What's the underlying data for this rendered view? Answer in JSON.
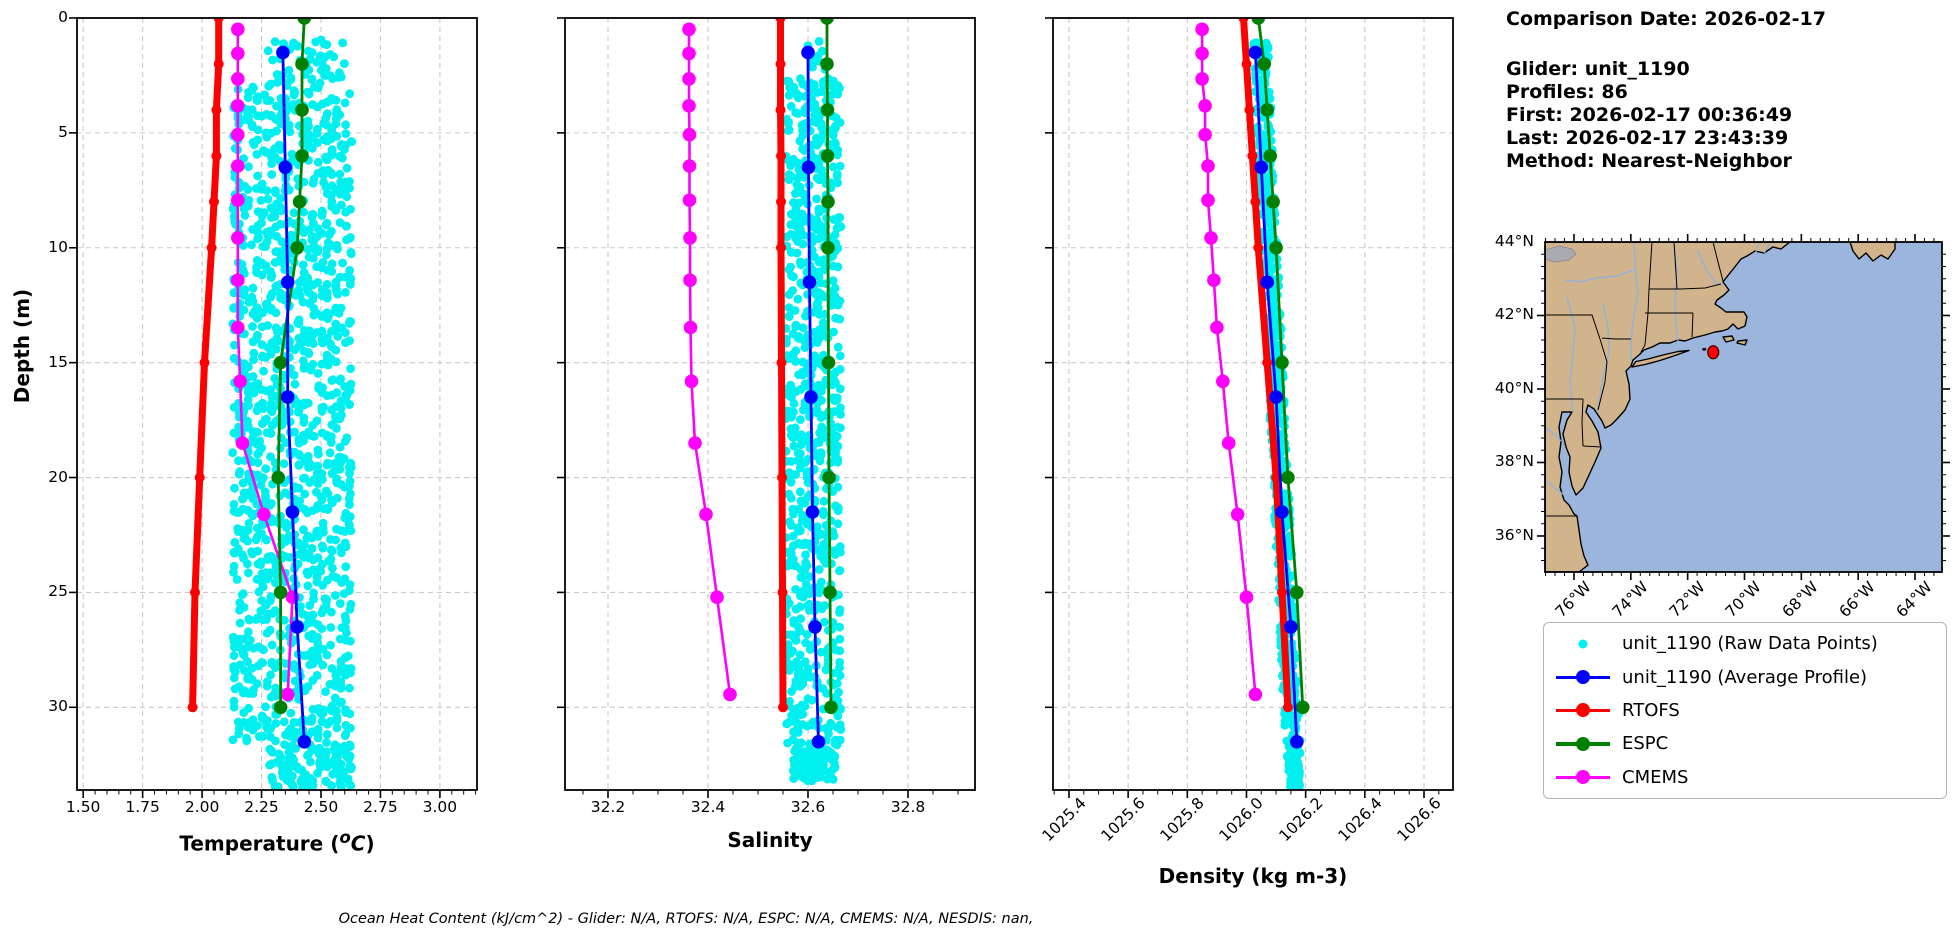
{
  "info": {
    "title": "Comparison Date: 2026-02-17",
    "glider": "Glider: unit_1190",
    "profiles": "Profiles: 86",
    "first": "First: 2026-02-17 00:36:49",
    "last": "Last: 2026-02-17 23:43:39",
    "method": "Method: Nearest-Neighbor"
  },
  "note": {
    "text": "Ocean Heat Content (kJ/cm^2) - Glider: N/A,  RTOFS: N/A,  ESPC: N/A,  CMEMS: N/A,  NESDIS: nan,"
  },
  "legend": {
    "items": [
      {
        "label": "unit_1190 (Raw Data Points)",
        "color": "#00F0F0",
        "style": "dot"
      },
      {
        "label": "unit_1190 (Average Profile)",
        "color": "#0000FF",
        "style": "line-dot"
      },
      {
        "label": "RTOFS",
        "color": "#FF0000",
        "style": "line-dot"
      },
      {
        "label": "ESPC",
        "color": "#008000",
        "style": "line-dot"
      },
      {
        "label": "CMEMS",
        "color": "#FF00FF",
        "style": "line-dot"
      }
    ]
  },
  "map": {
    "lat_ticks": [
      "44°N",
      "42°N",
      "40°N",
      "38°N",
      "36°N"
    ],
    "lat_values": [
      44,
      42,
      40,
      38,
      36
    ],
    "lon_ticks": [
      "76°W",
      "74°W",
      "72°W",
      "70°W",
      "68°W",
      "66°W",
      "64°W"
    ],
    "lon_values": [
      -76,
      -74,
      -72,
      -70,
      -68,
      -66,
      -64
    ],
    "extent": {
      "lon_min": -77.02,
      "lon_max": -63.05,
      "lat_min": 35.02,
      "lat_max": 44.0
    },
    "marker": {
      "lat": 41.0,
      "lon": -71.1,
      "color": "#FF0000"
    },
    "land_color": "#D2B48C",
    "ocean_color": "#9CB5DC",
    "lake_color": "#A9A9B0",
    "river_color": "#8AB2E2"
  },
  "chart_data": [
    {
      "type": "scatter",
      "id": "temperature",
      "xlabel_parts": {
        "pre": "Temperature (",
        "sup": "o",
        "c": "C",
        "close": ")"
      },
      "ylabel": "Depth (m)",
      "xlim": [
        1.474,
        3.156
      ],
      "xticks": [
        1.5,
        1.75,
        2.0,
        2.25,
        2.5,
        2.75,
        3.0
      ],
      "xtick_decimals": 2,
      "ylim": [
        0,
        33.6
      ],
      "yticks": [
        0,
        5,
        10,
        15,
        20,
        25,
        30
      ],
      "series": [
        {
          "name": "RTOFS",
          "color": "#FF0000",
          "lw": 7,
          "r": 5,
          "depths": [
            0,
            2,
            4,
            6,
            8,
            10,
            15,
            20,
            25,
            30
          ],
          "values": [
            2.07,
            2.07,
            2.06,
            2.06,
            2.05,
            2.04,
            2.01,
            1.99,
            1.97,
            1.96
          ]
        },
        {
          "name": "CMEMS",
          "color": "#FF00FF",
          "lw": 2.6,
          "r": 6.8,
          "depths": [
            0.49,
            1.54,
            2.65,
            3.82,
            5.08,
            6.44,
            7.93,
            9.57,
            11.41,
            13.47,
            15.81,
            18.5,
            21.6,
            25.21,
            29.44
          ],
          "values": [
            2.15,
            2.15,
            2.15,
            2.15,
            2.15,
            2.15,
            2.15,
            2.15,
            2.15,
            2.15,
            2.16,
            2.17,
            2.26,
            2.38,
            2.36
          ]
        },
        {
          "name": "ESPC",
          "color": "#008000",
          "lw": 2.8,
          "r": 6.8,
          "depths": [
            0,
            2,
            4,
            6,
            8,
            10,
            15,
            20,
            25,
            30
          ],
          "values": [
            2.43,
            2.42,
            2.42,
            2.42,
            2.41,
            2.4,
            2.33,
            2.32,
            2.33,
            2.33
          ]
        },
        {
          "name": "unit_1190 (Average Profile)",
          "color": "#0000FF",
          "lw": 2.8,
          "r": 6.8,
          "depths": [
            1.5,
            6.5,
            11.5,
            16.5,
            21.5,
            26.5,
            31.5
          ],
          "values": [
            2.34,
            2.35,
            2.36,
            2.36,
            2.38,
            2.4,
            2.43
          ]
        }
      ],
      "raw": {
        "color": "#00F0F0",
        "form": "stripes",
        "stripes": 26,
        "x0": 2.135,
        "dx": 0.0195,
        "jitter": 0.007,
        "per_stripe": 48,
        "extra": 80,
        "dmin": 3.0,
        "dmax": 31.6,
        "top": {
          "n": 55,
          "dmin": 0.9,
          "dmax": 3.0,
          "xmin": 2.27,
          "xmax": 2.6
        },
        "bottom": {
          "n": 120,
          "dmin": 31.6,
          "dmax": 33.5,
          "xmin": 2.28,
          "xmax": 2.63
        }
      }
    },
    {
      "type": "scatter",
      "id": "salinity",
      "xlabel": "Salinity",
      "xlim": [
        32.114,
        32.934
      ],
      "xticks": [
        32.2,
        32.4,
        32.6,
        32.8
      ],
      "xtick_decimals": 1,
      "ylim": [
        0,
        33.6
      ],
      "yticks": [
        0,
        5,
        10,
        15,
        20,
        25,
        30
      ],
      "series": [
        {
          "name": "RTOFS",
          "color": "#FF0000",
          "lw": 7,
          "r": 5,
          "depths": [
            0,
            2,
            4,
            6,
            8,
            10,
            15,
            20,
            25,
            30
          ],
          "values": [
            32.545,
            32.545,
            32.545,
            32.546,
            32.546,
            32.546,
            32.547,
            32.548,
            32.549,
            32.55
          ]
        },
        {
          "name": "CMEMS",
          "color": "#FF00FF",
          "lw": 2.6,
          "r": 6.8,
          "depths": [
            0.49,
            1.54,
            2.65,
            3.82,
            5.08,
            6.44,
            7.93,
            9.57,
            11.41,
            13.47,
            15.81,
            18.5,
            21.6,
            25.21,
            29.44
          ],
          "values": [
            32.362,
            32.362,
            32.362,
            32.362,
            32.363,
            32.363,
            32.363,
            32.364,
            32.364,
            32.365,
            32.367,
            32.374,
            32.396,
            32.418,
            32.444
          ]
        },
        {
          "name": "ESPC",
          "color": "#008000",
          "lw": 2.8,
          "r": 6.8,
          "depths": [
            0,
            2,
            4,
            6,
            8,
            10,
            15,
            20,
            25,
            30
          ],
          "values": [
            32.638,
            32.638,
            32.639,
            32.639,
            32.64,
            32.64,
            32.641,
            32.642,
            32.644,
            32.646
          ]
        },
        {
          "name": "unit_1190 (Average Profile)",
          "color": "#0000FF",
          "lw": 2.8,
          "r": 6.8,
          "depths": [
            1.5,
            6.5,
            11.5,
            16.5,
            21.5,
            26.5,
            31.5
          ],
          "values": [
            32.6,
            32.601,
            32.603,
            32.606,
            32.609,
            32.614,
            32.621
          ]
        }
      ],
      "raw": {
        "color": "#00F0F0",
        "form": "stripes",
        "stripes": 24,
        "x0": 32.557,
        "dx": 0.00465,
        "jitter": 0.0018,
        "per_stripe": 30,
        "extra": 40,
        "dmin": 2.6,
        "dmax": 31.8,
        "top": {
          "n": 10,
          "dmin": 1.0,
          "dmax": 2.6,
          "xmin": 32.59,
          "xmax": 32.64
        },
        "bottom": {
          "n": 90,
          "dmin": 31.8,
          "dmax": 33.2,
          "xmin": 32.57,
          "xmax": 32.655
        }
      }
    },
    {
      "type": "scatter",
      "id": "density",
      "xlabel": "Density (kg m-3)",
      "xlim": [
        1025.346,
        1026.698
      ],
      "xticks": [
        1025.4,
        1025.6,
        1025.8,
        1026.0,
        1026.2,
        1026.4,
        1026.6
      ],
      "xtick_decimals": 1,
      "xtick_rotation": 45,
      "ylim": [
        0,
        33.6
      ],
      "yticks": [
        0,
        5,
        10,
        15,
        20,
        25,
        30
      ],
      "series": [
        {
          "name": "RTOFS",
          "color": "#FF0000",
          "lw": 7,
          "r": 5,
          "depths": [
            0,
            2,
            4,
            6,
            8,
            10,
            15,
            20,
            25,
            30
          ],
          "values": [
            1025.99,
            1026.0,
            1026.01,
            1026.02,
            1026.03,
            1026.04,
            1026.07,
            1026.1,
            1026.12,
            1026.14
          ]
        },
        {
          "name": "CMEMS",
          "color": "#FF00FF",
          "lw": 2.6,
          "r": 6.8,
          "depths": [
            0.49,
            1.54,
            2.65,
            3.82,
            5.08,
            6.44,
            7.93,
            9.57,
            11.41,
            13.47,
            15.81,
            18.5,
            21.6,
            25.21,
            29.44
          ],
          "values": [
            1025.85,
            1025.85,
            1025.85,
            1025.86,
            1025.86,
            1025.87,
            1025.87,
            1025.88,
            1025.89,
            1025.9,
            1025.92,
            1025.94,
            1025.97,
            1026.0,
            1026.03
          ]
        },
        {
          "name": "ESPC",
          "color": "#008000",
          "lw": 2.8,
          "r": 6.8,
          "depths": [
            0,
            2,
            4,
            6,
            8,
            10,
            15,
            20,
            25,
            30
          ],
          "values": [
            1026.04,
            1026.06,
            1026.07,
            1026.08,
            1026.09,
            1026.1,
            1026.12,
            1026.14,
            1026.17,
            1026.19
          ]
        },
        {
          "name": "unit_1190 (Average Profile)",
          "color": "#0000FF",
          "lw": 2.8,
          "r": 6.8,
          "depths": [
            1.5,
            6.5,
            11.5,
            16.5,
            21.5,
            26.5,
            31.5
          ],
          "values": [
            1026.03,
            1026.05,
            1026.07,
            1026.1,
            1026.12,
            1026.15,
            1026.17
          ]
        }
      ],
      "raw": {
        "color": "#00F0F0",
        "form": "band",
        "slope": 0.0036,
        "intercept": 1026.043,
        "halfwidth": 0.026,
        "n": 650,
        "dmin": 0.9,
        "dmax": 32.2,
        "bottom": {
          "n": 70,
          "dmin": 32.2,
          "dmax": 33.5
        }
      }
    }
  ]
}
